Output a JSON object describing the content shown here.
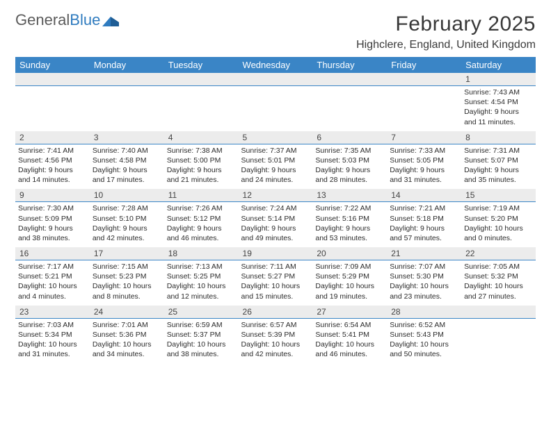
{
  "logo": {
    "text_gray": "General",
    "text_blue": "Blue"
  },
  "title": "February 2025",
  "location": "Highclere, England, United Kingdom",
  "colors": {
    "header_bg": "#3a85c6",
    "header_text": "#ffffff",
    "daynum_bg": "#ececec",
    "border": "#3a85c6",
    "body_text": "#2b2b2b",
    "title_text": "#383838"
  },
  "day_headers": [
    "Sunday",
    "Monday",
    "Tuesday",
    "Wednesday",
    "Thursday",
    "Friday",
    "Saturday"
  ],
  "weeks": [
    [
      {
        "n": "",
        "sunrise": "",
        "sunset": "",
        "daylight": ""
      },
      {
        "n": "",
        "sunrise": "",
        "sunset": "",
        "daylight": ""
      },
      {
        "n": "",
        "sunrise": "",
        "sunset": "",
        "daylight": ""
      },
      {
        "n": "",
        "sunrise": "",
        "sunset": "",
        "daylight": ""
      },
      {
        "n": "",
        "sunrise": "",
        "sunset": "",
        "daylight": ""
      },
      {
        "n": "",
        "sunrise": "",
        "sunset": "",
        "daylight": ""
      },
      {
        "n": "1",
        "sunrise": "Sunrise: 7:43 AM",
        "sunset": "Sunset: 4:54 PM",
        "daylight": "Daylight: 9 hours and 11 minutes."
      }
    ],
    [
      {
        "n": "2",
        "sunrise": "Sunrise: 7:41 AM",
        "sunset": "Sunset: 4:56 PM",
        "daylight": "Daylight: 9 hours and 14 minutes."
      },
      {
        "n": "3",
        "sunrise": "Sunrise: 7:40 AM",
        "sunset": "Sunset: 4:58 PM",
        "daylight": "Daylight: 9 hours and 17 minutes."
      },
      {
        "n": "4",
        "sunrise": "Sunrise: 7:38 AM",
        "sunset": "Sunset: 5:00 PM",
        "daylight": "Daylight: 9 hours and 21 minutes."
      },
      {
        "n": "5",
        "sunrise": "Sunrise: 7:37 AM",
        "sunset": "Sunset: 5:01 PM",
        "daylight": "Daylight: 9 hours and 24 minutes."
      },
      {
        "n": "6",
        "sunrise": "Sunrise: 7:35 AM",
        "sunset": "Sunset: 5:03 PM",
        "daylight": "Daylight: 9 hours and 28 minutes."
      },
      {
        "n": "7",
        "sunrise": "Sunrise: 7:33 AM",
        "sunset": "Sunset: 5:05 PM",
        "daylight": "Daylight: 9 hours and 31 minutes."
      },
      {
        "n": "8",
        "sunrise": "Sunrise: 7:31 AM",
        "sunset": "Sunset: 5:07 PM",
        "daylight": "Daylight: 9 hours and 35 minutes."
      }
    ],
    [
      {
        "n": "9",
        "sunrise": "Sunrise: 7:30 AM",
        "sunset": "Sunset: 5:09 PM",
        "daylight": "Daylight: 9 hours and 38 minutes."
      },
      {
        "n": "10",
        "sunrise": "Sunrise: 7:28 AM",
        "sunset": "Sunset: 5:10 PM",
        "daylight": "Daylight: 9 hours and 42 minutes."
      },
      {
        "n": "11",
        "sunrise": "Sunrise: 7:26 AM",
        "sunset": "Sunset: 5:12 PM",
        "daylight": "Daylight: 9 hours and 46 minutes."
      },
      {
        "n": "12",
        "sunrise": "Sunrise: 7:24 AM",
        "sunset": "Sunset: 5:14 PM",
        "daylight": "Daylight: 9 hours and 49 minutes."
      },
      {
        "n": "13",
        "sunrise": "Sunrise: 7:22 AM",
        "sunset": "Sunset: 5:16 PM",
        "daylight": "Daylight: 9 hours and 53 minutes."
      },
      {
        "n": "14",
        "sunrise": "Sunrise: 7:21 AM",
        "sunset": "Sunset: 5:18 PM",
        "daylight": "Daylight: 9 hours and 57 minutes."
      },
      {
        "n": "15",
        "sunrise": "Sunrise: 7:19 AM",
        "sunset": "Sunset: 5:20 PM",
        "daylight": "Daylight: 10 hours and 0 minutes."
      }
    ],
    [
      {
        "n": "16",
        "sunrise": "Sunrise: 7:17 AM",
        "sunset": "Sunset: 5:21 PM",
        "daylight": "Daylight: 10 hours and 4 minutes."
      },
      {
        "n": "17",
        "sunrise": "Sunrise: 7:15 AM",
        "sunset": "Sunset: 5:23 PM",
        "daylight": "Daylight: 10 hours and 8 minutes."
      },
      {
        "n": "18",
        "sunrise": "Sunrise: 7:13 AM",
        "sunset": "Sunset: 5:25 PM",
        "daylight": "Daylight: 10 hours and 12 minutes."
      },
      {
        "n": "19",
        "sunrise": "Sunrise: 7:11 AM",
        "sunset": "Sunset: 5:27 PM",
        "daylight": "Daylight: 10 hours and 15 minutes."
      },
      {
        "n": "20",
        "sunrise": "Sunrise: 7:09 AM",
        "sunset": "Sunset: 5:29 PM",
        "daylight": "Daylight: 10 hours and 19 minutes."
      },
      {
        "n": "21",
        "sunrise": "Sunrise: 7:07 AM",
        "sunset": "Sunset: 5:30 PM",
        "daylight": "Daylight: 10 hours and 23 minutes."
      },
      {
        "n": "22",
        "sunrise": "Sunrise: 7:05 AM",
        "sunset": "Sunset: 5:32 PM",
        "daylight": "Daylight: 10 hours and 27 minutes."
      }
    ],
    [
      {
        "n": "23",
        "sunrise": "Sunrise: 7:03 AM",
        "sunset": "Sunset: 5:34 PM",
        "daylight": "Daylight: 10 hours and 31 minutes."
      },
      {
        "n": "24",
        "sunrise": "Sunrise: 7:01 AM",
        "sunset": "Sunset: 5:36 PM",
        "daylight": "Daylight: 10 hours and 34 minutes."
      },
      {
        "n": "25",
        "sunrise": "Sunrise: 6:59 AM",
        "sunset": "Sunset: 5:37 PM",
        "daylight": "Daylight: 10 hours and 38 minutes."
      },
      {
        "n": "26",
        "sunrise": "Sunrise: 6:57 AM",
        "sunset": "Sunset: 5:39 PM",
        "daylight": "Daylight: 10 hours and 42 minutes."
      },
      {
        "n": "27",
        "sunrise": "Sunrise: 6:54 AM",
        "sunset": "Sunset: 5:41 PM",
        "daylight": "Daylight: 10 hours and 46 minutes."
      },
      {
        "n": "28",
        "sunrise": "Sunrise: 6:52 AM",
        "sunset": "Sunset: 5:43 PM",
        "daylight": "Daylight: 10 hours and 50 minutes."
      },
      {
        "n": "",
        "sunrise": "",
        "sunset": "",
        "daylight": ""
      }
    ]
  ]
}
